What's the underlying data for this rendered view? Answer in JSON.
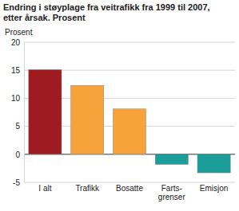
{
  "chart_data": {
    "type": "bar",
    "title": "Endring i støyplage fra veitrafikk fra 1999 til 2007,\netter årsak. Prosent",
    "y_label": "Prosent",
    "categories": [
      "I alt",
      "Trafikk",
      "Bosatte",
      "Farts-\ngrenser",
      "Emisjon"
    ],
    "values": [
      15.1,
      12.3,
      8.1,
      -1.8,
      -3.3
    ],
    "colors": [
      "#9e1b20",
      "#f8a23b",
      "#f8a23b",
      "#1b9e9a",
      "#1b9e9a"
    ],
    "ylim": [
      -5,
      20
    ],
    "yticks": [
      -5,
      0,
      5,
      10,
      15,
      20
    ],
    "grid": true
  }
}
